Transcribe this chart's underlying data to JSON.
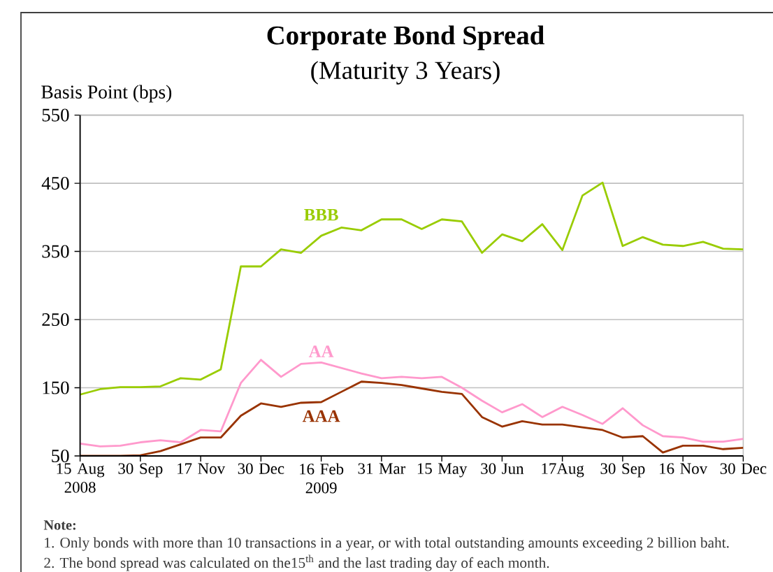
{
  "chart_data": {
    "type": "line",
    "title": "Corporate Bond Spread",
    "subtitle": "(Maturity 3 Years)",
    "ylabel": "Basis Point (bps)",
    "categories": [
      "15 Aug 2008",
      null,
      null,
      "30 Sep",
      null,
      null,
      "17 Nov",
      null,
      null,
      "30 Dec",
      null,
      null,
      "16 Feb 2009",
      null,
      null,
      "31 Mar",
      null,
      null,
      "15 May",
      null,
      null,
      "30 Jun",
      null,
      null,
      "17Aug",
      null,
      null,
      "30 Sep",
      null,
      null,
      "16 Nov",
      null,
      null,
      "30 Dec"
    ],
    "series": [
      {
        "name": "BBB",
        "color": "#99cc00",
        "values": [
          140,
          148,
          151,
          151,
          152,
          164,
          162,
          177,
          328,
          328,
          353,
          348,
          373,
          385,
          381,
          397,
          397,
          383,
          397,
          394,
          348,
          375,
          365,
          390,
          352,
          432,
          451,
          358,
          371,
          360,
          358,
          364,
          354,
          353
        ]
      },
      {
        "name": "AA",
        "color": "#ff99cc",
        "values": [
          68,
          64,
          65,
          70,
          73,
          70,
          88,
          86,
          157,
          191,
          166,
          185,
          187,
          179,
          171,
          164,
          166,
          164,
          166,
          150,
          131,
          114,
          126,
          107,
          122,
          110,
          97,
          120,
          95,
          79,
          77,
          71,
          71,
          75
        ]
      },
      {
        "name": "AAA",
        "color": "#993300",
        "values": [
          50,
          50,
          50,
          51,
          57,
          67,
          77,
          77,
          109,
          127,
          122,
          128,
          129,
          144,
          159,
          157,
          154,
          149,
          144,
          141,
          107,
          93,
          101,
          96,
          96,
          92,
          88,
          77,
          79,
          55,
          65,
          65,
          60,
          62
        ]
      }
    ],
    "ylim": [
      50,
      550
    ],
    "yticks": [
      50,
      150,
      250,
      350,
      450,
      550
    ],
    "grid": "y",
    "annotations": [
      "Note:",
      "1. Only bonds with more than 10 transactions in a year, or with total outstanding amounts exceeding 2 billion baht.",
      "2. The bond spread was calculated on the15$^{th}$ and the last trading day of each month."
    ]
  }
}
